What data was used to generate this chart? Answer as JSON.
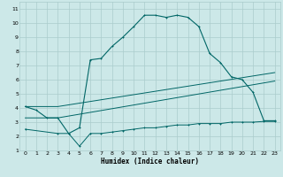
{
  "xlabel": "Humidex (Indice chaleur)",
  "bg_color": "#cce8e8",
  "grid_color": "#aacccc",
  "line_color": "#006666",
  "xlim": [
    -0.5,
    23.5
  ],
  "ylim": [
    1,
    11.5
  ],
  "xticks": [
    0,
    1,
    2,
    3,
    4,
    5,
    6,
    7,
    8,
    9,
    10,
    11,
    12,
    13,
    14,
    15,
    16,
    17,
    18,
    19,
    20,
    21,
    22,
    23
  ],
  "yticks": [
    1,
    2,
    3,
    4,
    5,
    6,
    7,
    8,
    9,
    10,
    11
  ],
  "line1_x": [
    0,
    1,
    2,
    3,
    4,
    5,
    6,
    7,
    8,
    9,
    10,
    11,
    12,
    13,
    14,
    15,
    16,
    17,
    18,
    19,
    20,
    21,
    22,
    23
  ],
  "line1_y": [
    4.1,
    3.85,
    3.3,
    3.3,
    2.2,
    2.6,
    7.4,
    7.5,
    8.35,
    9.0,
    9.75,
    10.55,
    10.55,
    10.4,
    10.55,
    10.4,
    9.75,
    7.85,
    7.2,
    6.2,
    6.0,
    5.1,
    3.1,
    3.1
  ],
  "line2_x": [
    0,
    3,
    23
  ],
  "line2_y": [
    3.3,
    3.3,
    5.9
  ],
  "line3_x": [
    0,
    3,
    23
  ],
  "line3_y": [
    4.1,
    4.1,
    6.5
  ],
  "line4_x": [
    0,
    3,
    4,
    5,
    6,
    7,
    8,
    9,
    10,
    11,
    12,
    13,
    14,
    15,
    16,
    17,
    18,
    19,
    20,
    21,
    22,
    23
  ],
  "line4_y": [
    2.5,
    2.2,
    2.2,
    1.3,
    2.2,
    2.2,
    2.3,
    2.4,
    2.5,
    2.6,
    2.6,
    2.7,
    2.8,
    2.8,
    2.9,
    2.9,
    2.9,
    3.0,
    3.0,
    3.0,
    3.05,
    3.05
  ]
}
